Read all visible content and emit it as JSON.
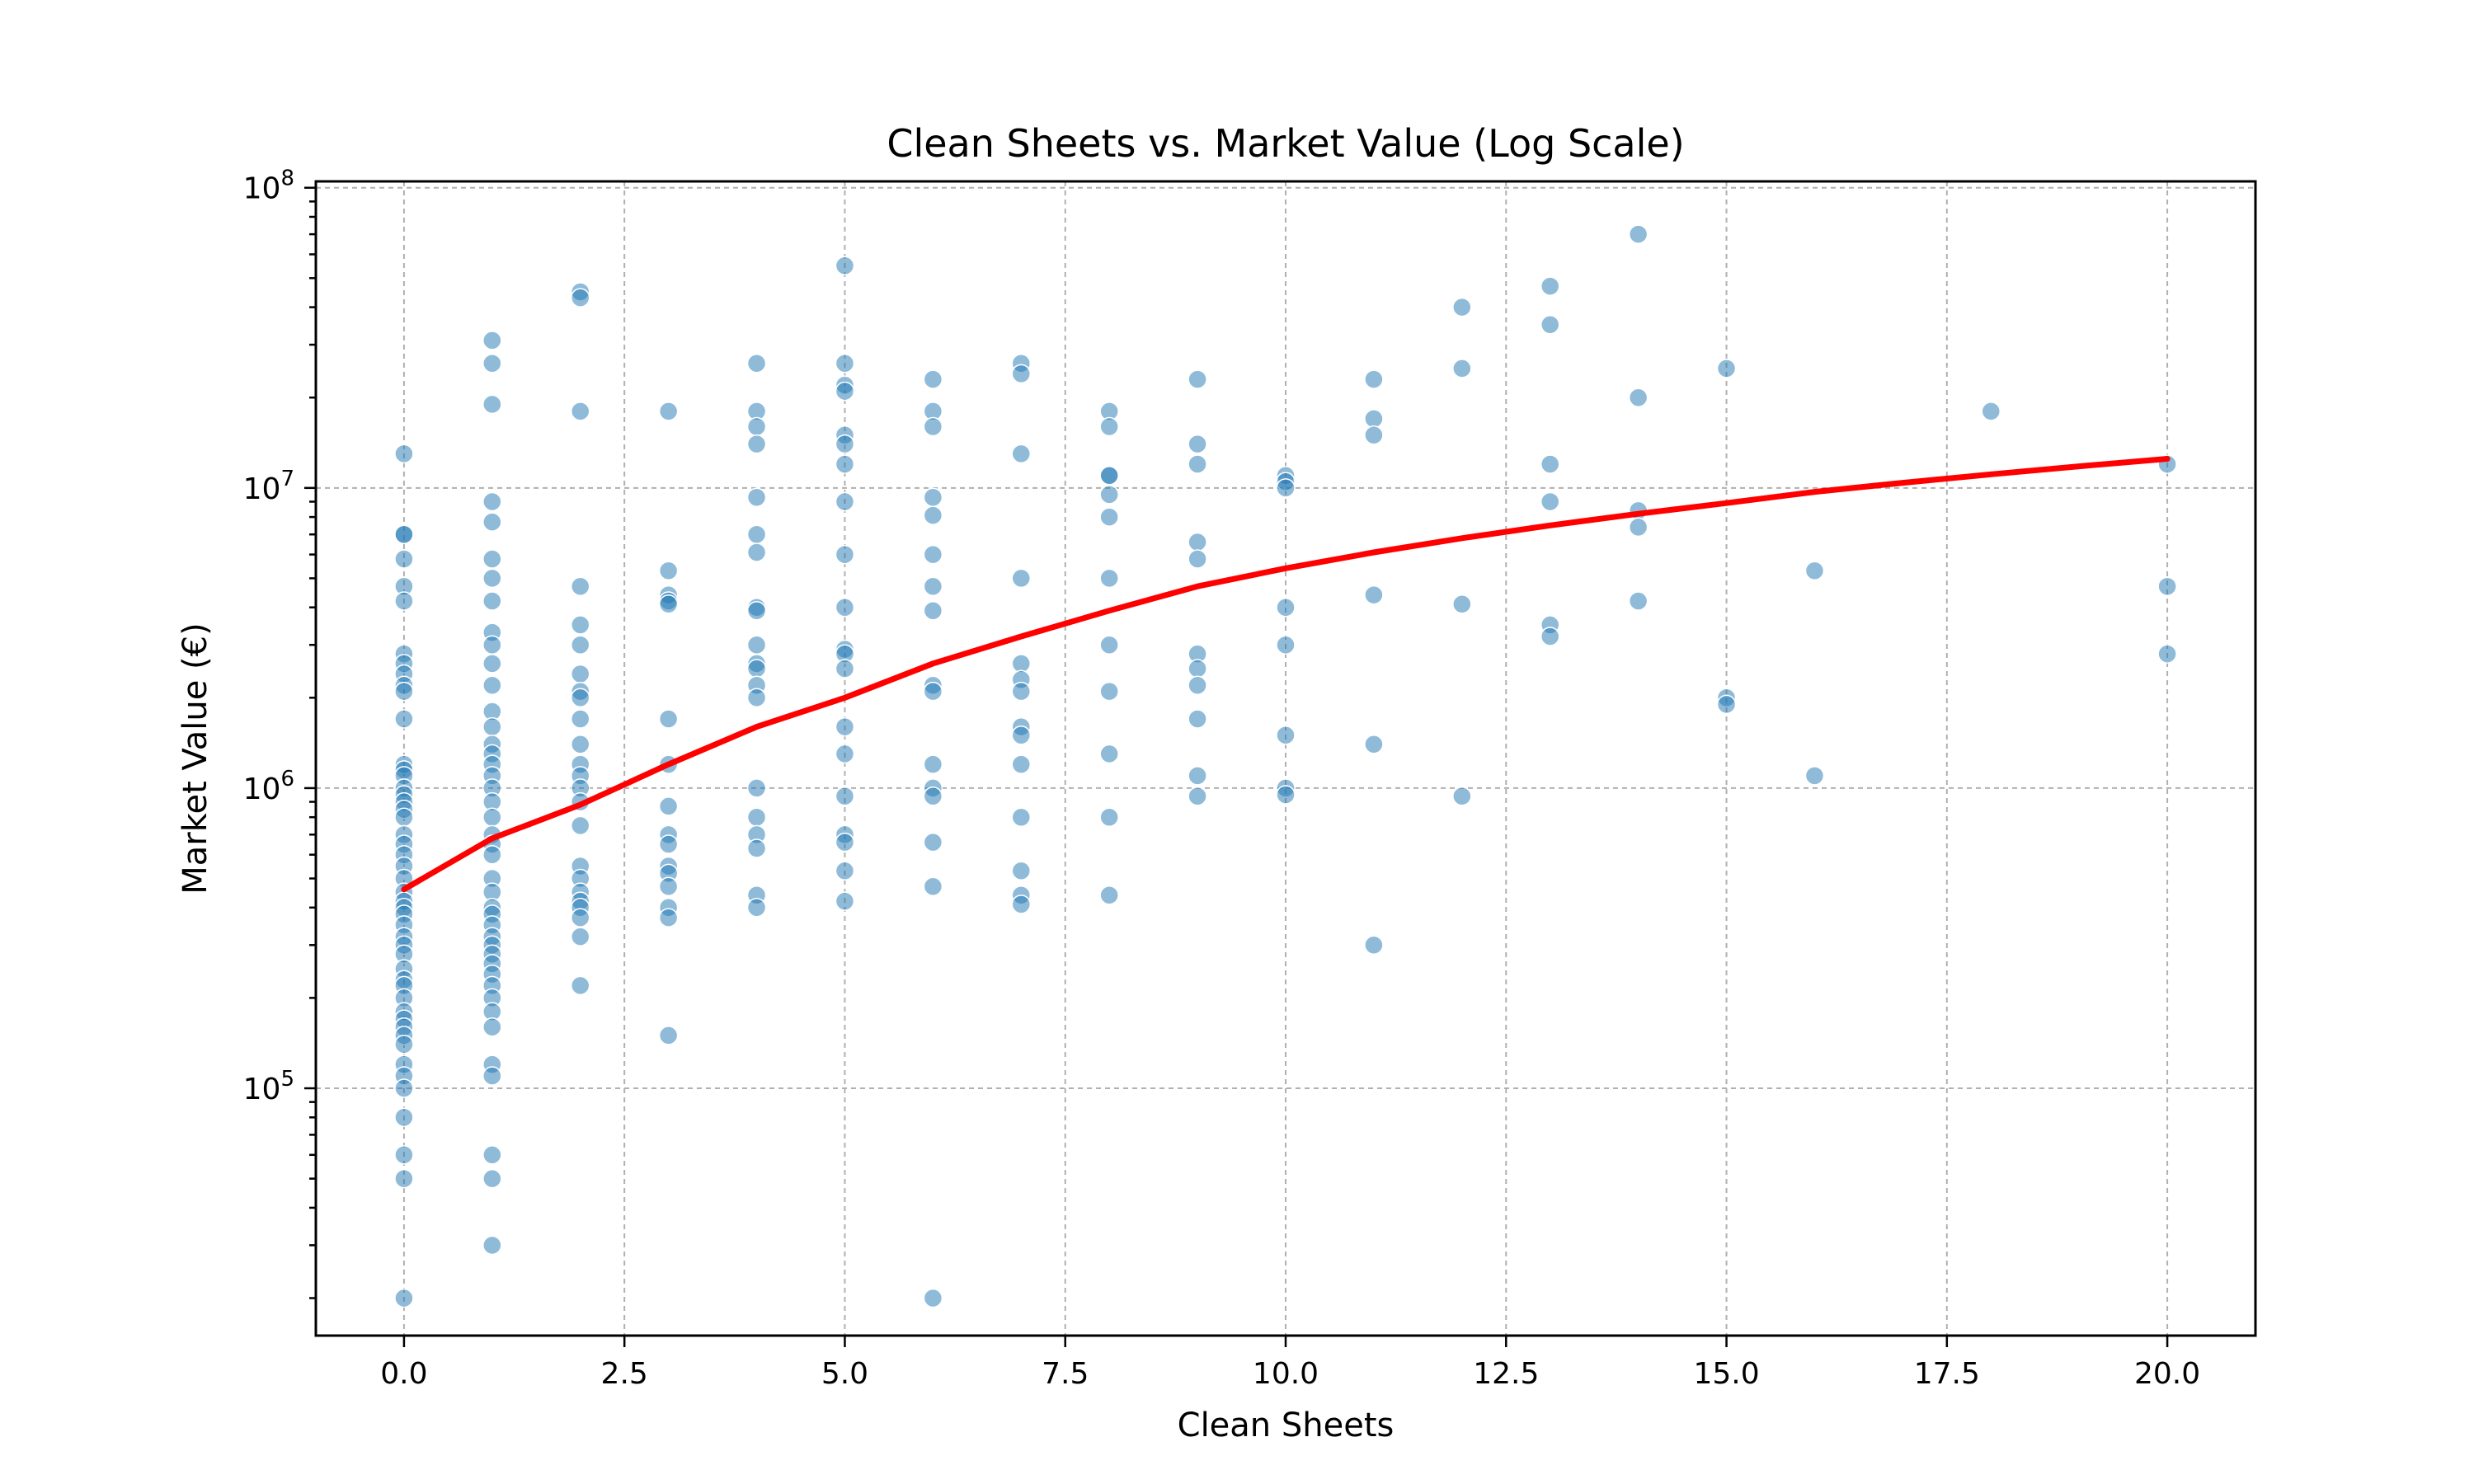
{
  "chart_data": {
    "type": "scatter",
    "title": "Clean Sheets vs. Market Value (Log Scale)",
    "xlabel": "Clean Sheets",
    "ylabel": "Market Value (€)",
    "xlim": [
      -1,
      21
    ],
    "ylim": [
      15000,
      105000000
    ],
    "yscale": "log",
    "grid": true,
    "x_ticks": [
      0,
      2.5,
      5,
      7.5,
      10,
      12.5,
      15,
      17.5,
      20
    ],
    "x_tick_labels": [
      "0.0",
      "2.5",
      "5.0",
      "7.5",
      "10.0",
      "12.5",
      "15.0",
      "17.5",
      "20.0"
    ],
    "y_ticks": [
      100000,
      1000000,
      10000000,
      100000000
    ],
    "y_tick_labels": [
      {
        "base": "10",
        "exp": "5"
      },
      {
        "base": "10",
        "exp": "6"
      },
      {
        "base": "10",
        "exp": "7"
      },
      {
        "base": "10",
        "exp": "8"
      }
    ],
    "colors": {
      "points": "#1f77b4",
      "trend": "#ff0000"
    },
    "points": [
      [
        0,
        13000000
      ],
      [
        0,
        7000000
      ],
      [
        0,
        7000000
      ],
      [
        0,
        5800000
      ],
      [
        0,
        4700000
      ],
      [
        0,
        4200000
      ],
      [
        0,
        2800000
      ],
      [
        0,
        2600000
      ],
      [
        0,
        2400000
      ],
      [
        0,
        2200000
      ],
      [
        0,
        2100000
      ],
      [
        0,
        1700000
      ],
      [
        0,
        1200000
      ],
      [
        0,
        1150000
      ],
      [
        0,
        1100000
      ],
      [
        0,
        1000000
      ],
      [
        0,
        950000
      ],
      [
        0,
        900000
      ],
      [
        0,
        850000
      ],
      [
        0,
        800000
      ],
      [
        0,
        700000
      ],
      [
        0,
        650000
      ],
      [
        0,
        600000
      ],
      [
        0,
        550000
      ],
      [
        0,
        500000
      ],
      [
        0,
        450000
      ],
      [
        0,
        420000
      ],
      [
        0,
        400000
      ],
      [
        0,
        380000
      ],
      [
        0,
        350000
      ],
      [
        0,
        320000
      ],
      [
        0,
        300000
      ],
      [
        0,
        280000
      ],
      [
        0,
        250000
      ],
      [
        0,
        230000
      ],
      [
        0,
        220000
      ],
      [
        0,
        200000
      ],
      [
        0,
        180000
      ],
      [
        0,
        170000
      ],
      [
        0,
        160000
      ],
      [
        0,
        150000
      ],
      [
        0,
        140000
      ],
      [
        0,
        120000
      ],
      [
        0,
        110000
      ],
      [
        0,
        100000
      ],
      [
        0,
        80000
      ],
      [
        0,
        60000
      ],
      [
        0,
        50000
      ],
      [
        0,
        20000
      ],
      [
        1,
        31000000
      ],
      [
        1,
        26000000
      ],
      [
        1,
        19000000
      ],
      [
        1,
        9000000
      ],
      [
        1,
        7700000
      ],
      [
        1,
        5800000
      ],
      [
        1,
        5000000
      ],
      [
        1,
        4200000
      ],
      [
        1,
        3300000
      ],
      [
        1,
        3000000
      ],
      [
        1,
        2600000
      ],
      [
        1,
        2200000
      ],
      [
        1,
        1800000
      ],
      [
        1,
        1600000
      ],
      [
        1,
        1400000
      ],
      [
        1,
        1300000
      ],
      [
        1,
        1200000
      ],
      [
        1,
        1100000
      ],
      [
        1,
        1000000
      ],
      [
        1,
        900000
      ],
      [
        1,
        800000
      ],
      [
        1,
        700000
      ],
      [
        1,
        650000
      ],
      [
        1,
        600000
      ],
      [
        1,
        500000
      ],
      [
        1,
        450000
      ],
      [
        1,
        400000
      ],
      [
        1,
        380000
      ],
      [
        1,
        350000
      ],
      [
        1,
        320000
      ],
      [
        1,
        300000
      ],
      [
        1,
        280000
      ],
      [
        1,
        260000
      ],
      [
        1,
        240000
      ],
      [
        1,
        220000
      ],
      [
        1,
        200000
      ],
      [
        1,
        180000
      ],
      [
        1,
        160000
      ],
      [
        1,
        120000
      ],
      [
        1,
        110000
      ],
      [
        1,
        60000
      ],
      [
        1,
        50000
      ],
      [
        1,
        30000
      ],
      [
        2,
        45000000
      ],
      [
        2,
        43000000
      ],
      [
        2,
        18000000
      ],
      [
        2,
        4700000
      ],
      [
        2,
        3500000
      ],
      [
        2,
        3000000
      ],
      [
        2,
        2400000
      ],
      [
        2,
        2100000
      ],
      [
        2,
        2000000
      ],
      [
        2,
        1700000
      ],
      [
        2,
        1400000
      ],
      [
        2,
        1200000
      ],
      [
        2,
        1100000
      ],
      [
        2,
        1000000
      ],
      [
        2,
        900000
      ],
      [
        2,
        750000
      ],
      [
        2,
        550000
      ],
      [
        2,
        500000
      ],
      [
        2,
        450000
      ],
      [
        2,
        420000
      ],
      [
        2,
        400000
      ],
      [
        2,
        370000
      ],
      [
        2,
        320000
      ],
      [
        2,
        220000
      ],
      [
        3,
        18000000
      ],
      [
        3,
        5300000
      ],
      [
        3,
        4400000
      ],
      [
        3,
        4200000
      ],
      [
        3,
        4100000
      ],
      [
        3,
        1700000
      ],
      [
        3,
        1200000
      ],
      [
        3,
        870000
      ],
      [
        3,
        700000
      ],
      [
        3,
        650000
      ],
      [
        3,
        550000
      ],
      [
        3,
        520000
      ],
      [
        3,
        470000
      ],
      [
        3,
        400000
      ],
      [
        3,
        370000
      ],
      [
        3,
        150000
      ],
      [
        4,
        26000000
      ],
      [
        4,
        18000000
      ],
      [
        4,
        16000000
      ],
      [
        4,
        14000000
      ],
      [
        4,
        9300000
      ],
      [
        4,
        7000000
      ],
      [
        4,
        6100000
      ],
      [
        4,
        4000000
      ],
      [
        4,
        3900000
      ],
      [
        4,
        3000000
      ],
      [
        4,
        2600000
      ],
      [
        4,
        2500000
      ],
      [
        4,
        2200000
      ],
      [
        4,
        2000000
      ],
      [
        4,
        1000000
      ],
      [
        4,
        800000
      ],
      [
        4,
        700000
      ],
      [
        4,
        630000
      ],
      [
        4,
        440000
      ],
      [
        4,
        400000
      ],
      [
        5,
        55000000
      ],
      [
        5,
        26000000
      ],
      [
        5,
        22000000
      ],
      [
        5,
        21000000
      ],
      [
        5,
        15000000
      ],
      [
        5,
        14000000
      ],
      [
        5,
        12000000
      ],
      [
        5,
        9000000
      ],
      [
        5,
        6000000
      ],
      [
        5,
        4000000
      ],
      [
        5,
        2900000
      ],
      [
        5,
        2800000
      ],
      [
        5,
        2500000
      ],
      [
        5,
        1600000
      ],
      [
        5,
        1300000
      ],
      [
        5,
        940000
      ],
      [
        5,
        700000
      ],
      [
        5,
        660000
      ],
      [
        5,
        530000
      ],
      [
        5,
        420000
      ],
      [
        6,
        23000000
      ],
      [
        6,
        18000000
      ],
      [
        6,
        16000000
      ],
      [
        6,
        9300000
      ],
      [
        6,
        8100000
      ],
      [
        6,
        6000000
      ],
      [
        6,
        4700000
      ],
      [
        6,
        3900000
      ],
      [
        6,
        2200000
      ],
      [
        6,
        2100000
      ],
      [
        6,
        1200000
      ],
      [
        6,
        1000000
      ],
      [
        6,
        940000
      ],
      [
        6,
        660000
      ],
      [
        6,
        470000
      ],
      [
        6,
        20000
      ],
      [
        7,
        26000000
      ],
      [
        7,
        24000000
      ],
      [
        7,
        13000000
      ],
      [
        7,
        5000000
      ],
      [
        7,
        2600000
      ],
      [
        7,
        2300000
      ],
      [
        7,
        2100000
      ],
      [
        7,
        1600000
      ],
      [
        7,
        1500000
      ],
      [
        7,
        1200000
      ],
      [
        7,
        800000
      ],
      [
        7,
        530000
      ],
      [
        7,
        440000
      ],
      [
        7,
        410000
      ],
      [
        8,
        18000000
      ],
      [
        8,
        16000000
      ],
      [
        8,
        11000000
      ],
      [
        8,
        11000000
      ],
      [
        8,
        9500000
      ],
      [
        8,
        8000000
      ],
      [
        8,
        5000000
      ],
      [
        8,
        3000000
      ],
      [
        8,
        2100000
      ],
      [
        8,
        1300000
      ],
      [
        8,
        800000
      ],
      [
        8,
        440000
      ],
      [
        9,
        23000000
      ],
      [
        9,
        14000000
      ],
      [
        9,
        12000000
      ],
      [
        9,
        6600000
      ],
      [
        9,
        5800000
      ],
      [
        9,
        2800000
      ],
      [
        9,
        2500000
      ],
      [
        9,
        2200000
      ],
      [
        9,
        1700000
      ],
      [
        9,
        1100000
      ],
      [
        9,
        940000
      ],
      [
        10,
        11000000
      ],
      [
        10,
        10500000
      ],
      [
        10,
        10000000
      ],
      [
        10,
        4000000
      ],
      [
        10,
        3000000
      ],
      [
        10,
        1500000
      ],
      [
        10,
        1000000
      ],
      [
        10,
        950000
      ],
      [
        11,
        23000000
      ],
      [
        11,
        17000000
      ],
      [
        11,
        15000000
      ],
      [
        11,
        4400000
      ],
      [
        11,
        1400000
      ],
      [
        11,
        300000
      ],
      [
        12,
        40000000
      ],
      [
        12,
        25000000
      ],
      [
        12,
        4100000
      ],
      [
        12,
        940000
      ],
      [
        13,
        47000000
      ],
      [
        13,
        35000000
      ],
      [
        13,
        12000000
      ],
      [
        13,
        9000000
      ],
      [
        13,
        3500000
      ],
      [
        13,
        3200000
      ],
      [
        14,
        70000000
      ],
      [
        14,
        20000000
      ],
      [
        14,
        8400000
      ],
      [
        14,
        7400000
      ],
      [
        14,
        4200000
      ],
      [
        15,
        25000000
      ],
      [
        15,
        2000000
      ],
      [
        15,
        1900000
      ],
      [
        16,
        5300000
      ],
      [
        16,
        1100000
      ],
      [
        18,
        18000000
      ],
      [
        20,
        12000000
      ],
      [
        20,
        4700000
      ],
      [
        20,
        2800000
      ]
    ],
    "trend_line": {
      "x": [
        0,
        1,
        2,
        3,
        4,
        5,
        6,
        7,
        8,
        9,
        10,
        11,
        12,
        13,
        14,
        15,
        16,
        17,
        18,
        19,
        20
      ],
      "y": [
        460000,
        680000,
        880000,
        1200000,
        1600000,
        2000000,
        2600000,
        3200000,
        3900000,
        4700000,
        5400000,
        6100000,
        6800000,
        7500000,
        8200000,
        8900000,
        9700000,
        10400000,
        11100000,
        11800000,
        12500000
      ]
    }
  }
}
